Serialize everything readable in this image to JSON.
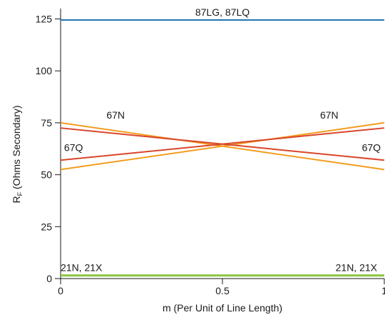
{
  "chart_data": {
    "type": "line",
    "title": "",
    "xlabel": "m (Per Unit of Line Length)",
    "ylabel_main": "R",
    "ylabel_sub": "F",
    "ylabel_rest": " (Ohms Secondary)",
    "xlim": [
      0,
      1
    ],
    "ylim": [
      0,
      130
    ],
    "xticks": [
      0,
      0.5,
      1
    ],
    "xtick_labels": [
      "0",
      "0.5",
      "1"
    ],
    "yticks": [
      0,
      25,
      50,
      75,
      100,
      125
    ],
    "ytick_labels": [
      "0",
      "25",
      "50",
      "75",
      "100",
      "125"
    ],
    "grid": false,
    "legend": "none",
    "series": [
      {
        "id": "87L",
        "color": "#1f77b4",
        "x": [
          0,
          1
        ],
        "y": [
          124.5,
          124.5
        ]
      },
      {
        "id": "67N-a",
        "color": "#f39c1f",
        "x": [
          0,
          1
        ],
        "y": [
          75,
          52.5
        ]
      },
      {
        "id": "67N-b",
        "color": "#f39c1f",
        "x": [
          0,
          1
        ],
        "y": [
          52.5,
          75
        ]
      },
      {
        "id": "67Q-a",
        "color": "#d9462b",
        "x": [
          0,
          1
        ],
        "y": [
          72.5,
          57
        ]
      },
      {
        "id": "67Q-b",
        "color": "#d9462b",
        "x": [
          0,
          1
        ],
        "y": [
          57,
          72.5
        ]
      },
      {
        "id": "21",
        "color": "#8bc53f",
        "x": [
          0,
          1
        ],
        "y": [
          1.5,
          1.5
        ]
      }
    ],
    "annotations": [
      {
        "text": "87LG, 87LQ",
        "x": 0.5,
        "y": 124.5,
        "anchor": "middle",
        "pos": "above"
      },
      {
        "text": "67N",
        "x": 0.17,
        "y": 75,
        "anchor": "middle",
        "pos": "above"
      },
      {
        "text": "67Q",
        "x": 0.04,
        "y": 69,
        "anchor": "middle",
        "pos": "below"
      },
      {
        "text": "67N",
        "x": 0.83,
        "y": 75,
        "anchor": "middle",
        "pos": "above"
      },
      {
        "text": "67Q",
        "x": 0.96,
        "y": 69,
        "anchor": "middle",
        "pos": "below"
      },
      {
        "text": "21N, 21X",
        "x": 0.0,
        "y": 1.5,
        "anchor": "start",
        "pos": "above"
      },
      {
        "text": "21N, 21X",
        "x": 1.0,
        "y": 1.5,
        "anchor": "end",
        "pos": "above"
      }
    ]
  }
}
